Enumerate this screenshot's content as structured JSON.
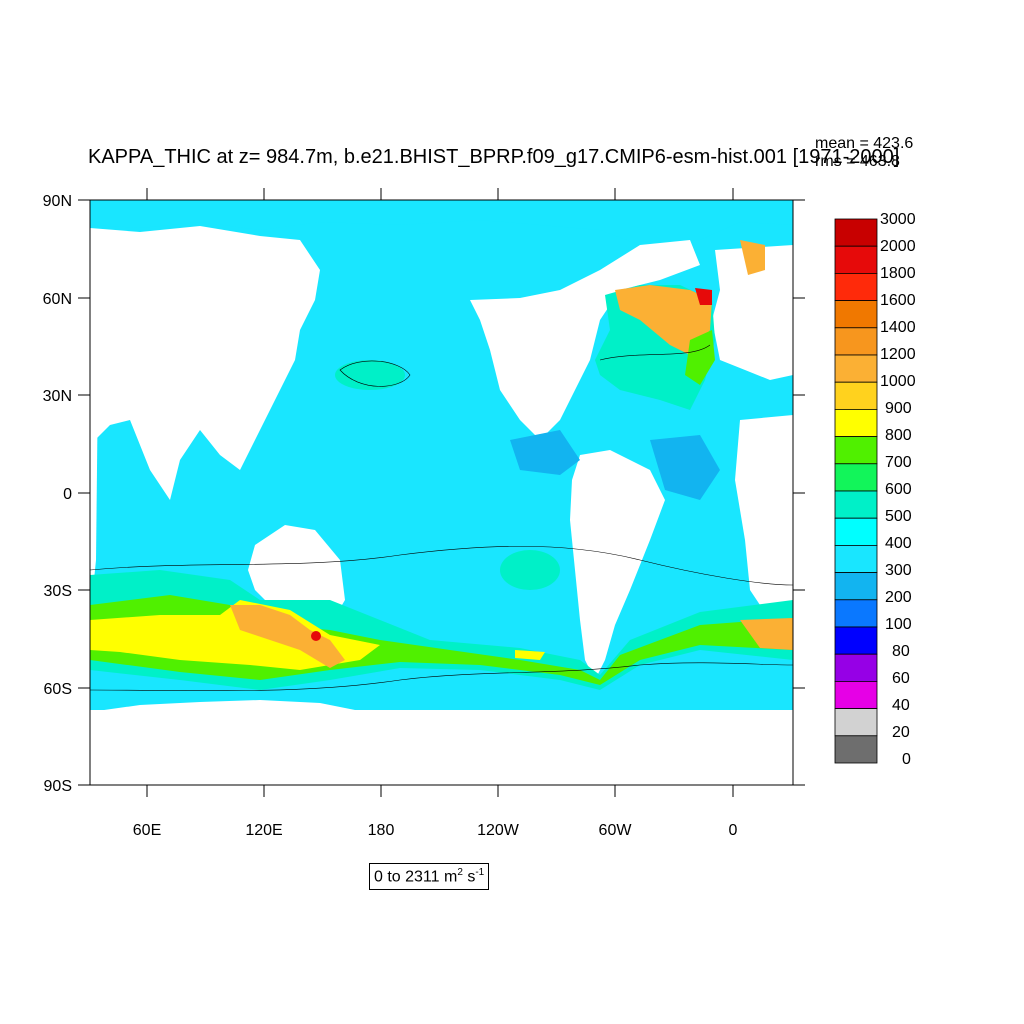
{
  "title": "KAPPA_THIC at z= 984.7m, b.e21.BHIST_BPRP.f09_g17.CMIP6-esm-hist.001 [1971-2000]",
  "stats": {
    "mean": "mean = 423.6",
    "rms": "rms = 463.8"
  },
  "axes": {
    "lat_labels": [
      "90N",
      "60N",
      "30N",
      "0",
      "30S",
      "60S",
      "90S"
    ],
    "lon_labels": [
      "60E",
      "120E",
      "180",
      "120W",
      "60W",
      "0"
    ]
  },
  "range": {
    "prefix": "0 to 2311 m",
    "sup1": "2",
    "mid": " s",
    "sup2": "-1"
  },
  "colorbar": {
    "labels": [
      "3000",
      "2000",
      "1800",
      "1600",
      "1400",
      "1200",
      "1000",
      "900",
      "800",
      "700",
      "600",
      "500",
      "400",
      "300",
      "200",
      "100",
      "80",
      "60",
      "40",
      "20",
      "0"
    ],
    "colors": [
      "#c80000",
      "#e60a0a",
      "#ff2a0a",
      "#f07800",
      "#f7961e",
      "#fbb034",
      "#ffd21e",
      "#ffff00",
      "#50f000",
      "#12f55a",
      "#00f0c8",
      "#00ffff",
      "#19e6ff",
      "#12b4f0",
      "#0a78ff",
      "#0000ff",
      "#9600e6",
      "#e600e6",
      "#d2d2d2",
      "#6e6e6e"
    ]
  },
  "map_colors": {
    "ocean_base": "#19e6ff",
    "ocean_low": "#12b4f0",
    "ocean_mid": "#00f0c8",
    "green": "#50f000",
    "yellow": "#ffff00",
    "orange": "#f7961e",
    "red": "#e60a0a",
    "land": "#ffffff"
  }
}
